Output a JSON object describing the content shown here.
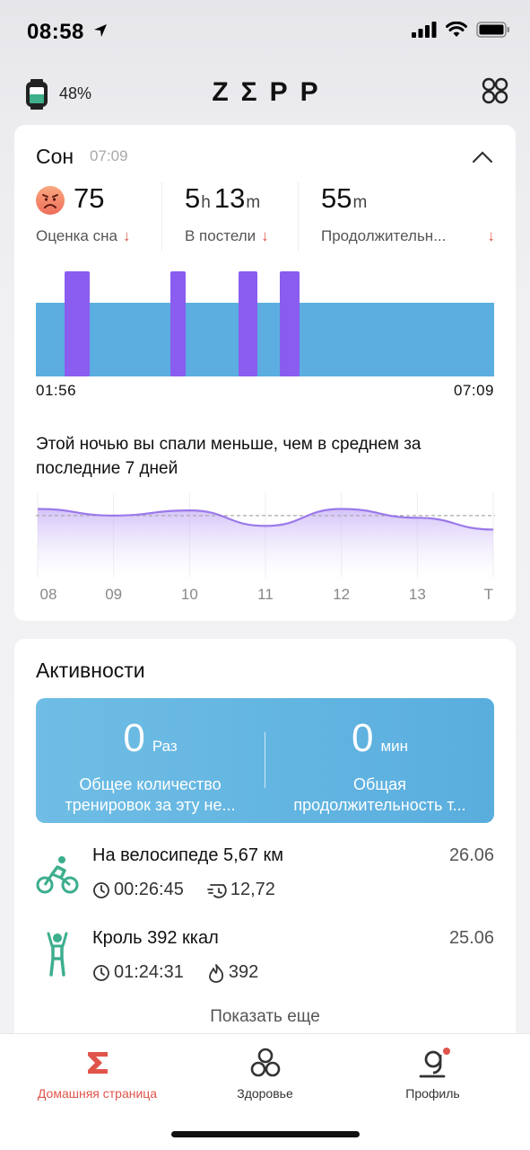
{
  "status_bar": {
    "time": "08:58"
  },
  "header": {
    "battery": "48%",
    "logo": "ZΣPP"
  },
  "sleep": {
    "title": "Сон",
    "time": "07:09",
    "score": {
      "value": "75",
      "label": "Оценка сна"
    },
    "in_bed": {
      "hours": "5",
      "hours_unit": "h",
      "minutes": "13",
      "minutes_unit": "m",
      "label": "В постели"
    },
    "duration": {
      "value": "55",
      "unit": "m",
      "label": "Продолжительн..."
    },
    "chart_start": "01:56",
    "chart_end": "07:09",
    "comparison_text": "Этой ночью вы спали меньше, чем в среднем за последние 7 дней",
    "chart_data": {
      "type": "area",
      "categories": [
        "08",
        "09",
        "10",
        "11",
        "12",
        "13",
        "T"
      ],
      "values": [
        0.86,
        0.77,
        0.84,
        0.63,
        0.86,
        0.74,
        0.58
      ],
      "average": 0.77
    }
  },
  "activities": {
    "title": "Активности",
    "total_count": {
      "value": "0",
      "unit": "Раз",
      "label_line1": "Общее количество",
      "label_line2": "тренировок за эту не..."
    },
    "total_duration": {
      "value": "0",
      "unit": "мин",
      "label_line1": "Общая",
      "label_line2": "продолжительность т..."
    },
    "workouts": [
      {
        "name": "На велосипеде 5,67 км",
        "date": "26.06",
        "time": "00:26:45",
        "second_stat": "12,72",
        "icon": "bicycle-icon",
        "second_icon": "pace-icon"
      },
      {
        "name": "Кроль 392 ккал",
        "date": "25.06",
        "time": "01:24:31",
        "second_stat": "392",
        "icon": "swimmer-icon",
        "second_icon": "flame-icon"
      }
    ],
    "show_more": "Показать еще"
  },
  "tabs": [
    {
      "label": "Домашняя страница",
      "icon": "sigma-icon",
      "active": true
    },
    {
      "label": "Здоровье",
      "icon": "health-icon",
      "active": false
    },
    {
      "label": "Профиль",
      "icon": "profile-icon",
      "active": false
    }
  ],
  "colors": {
    "accent_red": "#e0544a",
    "sleep_light": "#5baedf",
    "sleep_deep": "#8b5cf0",
    "activity_green": "#3cae8e"
  }
}
